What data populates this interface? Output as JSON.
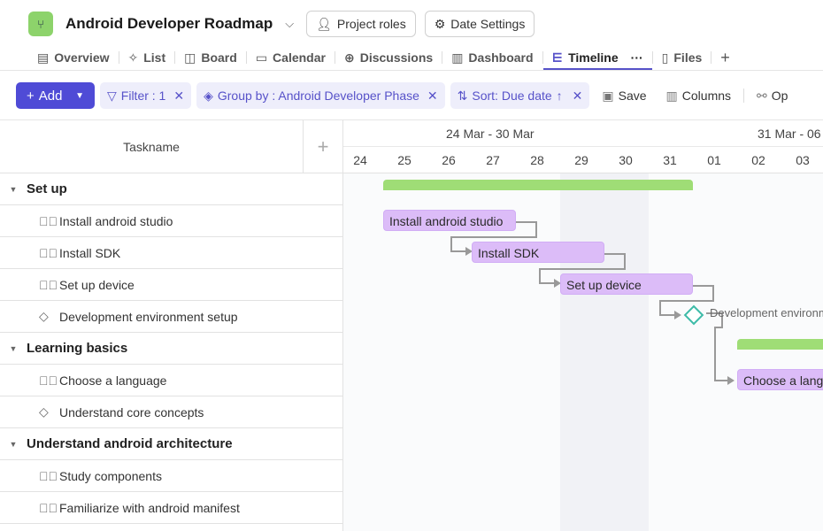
{
  "project": {
    "title": "Android Developer Roadmap",
    "logo_icon": "branch-icon",
    "brand_color": "#8dd36b",
    "project_roles": "Project roles",
    "date_settings": "Date Settings"
  },
  "tabs": [
    {
      "label": "Overview",
      "icon": "clipboard-icon"
    },
    {
      "label": "List",
      "icon": "pin-icon"
    },
    {
      "label": "Board",
      "icon": "board-icon"
    },
    {
      "label": "Calendar",
      "icon": "calendar-icon"
    },
    {
      "label": "Discussions",
      "icon": "plus-circle-icon"
    },
    {
      "label": "Dashboard",
      "icon": "chart-icon"
    },
    {
      "label": "Timeline",
      "icon": "timeline-icon",
      "selected": true
    },
    {
      "label": "Files",
      "icon": "file-icon"
    }
  ],
  "toolbar": {
    "add": "Add",
    "filter": "Filter : 1",
    "group_by": "Group by : Android Developer Phase",
    "sort": "Sort: Due date",
    "save": "Save",
    "columns": "Columns",
    "options": "Op",
    "accent": "#4f4bd6"
  },
  "grid": {
    "taskname_header": "Taskname"
  },
  "rows": [
    {
      "type": "group",
      "label": "Set up"
    },
    {
      "type": "task",
      "label": "Install android studio"
    },
    {
      "type": "task",
      "label": "Install SDK"
    },
    {
      "type": "task",
      "label": "Set up device"
    },
    {
      "type": "milestone",
      "label": "Development environment setup"
    },
    {
      "type": "group",
      "label": "Learning basics"
    },
    {
      "type": "task",
      "label": "Choose a language"
    },
    {
      "type": "milestone",
      "label": "Understand core concepts"
    },
    {
      "type": "group",
      "label": "Understand android architecture"
    },
    {
      "type": "task",
      "label": "Study components"
    },
    {
      "type": "task",
      "label": "Familiarize with android manifest"
    }
  ],
  "timeline": {
    "weeks": [
      "24 Mar - 30 Mar",
      "31 Mar - 06"
    ],
    "days": [
      "24",
      "25",
      "26",
      "27",
      "28",
      "29",
      "30",
      "31",
      "01",
      "02",
      "03"
    ],
    "bars": {
      "install_studio": "Install android studio",
      "install_sdk": "Install SDK",
      "setup_device": "Set up device",
      "dev_env": "Development environment setup",
      "choose_lang": "Choose a language"
    }
  }
}
